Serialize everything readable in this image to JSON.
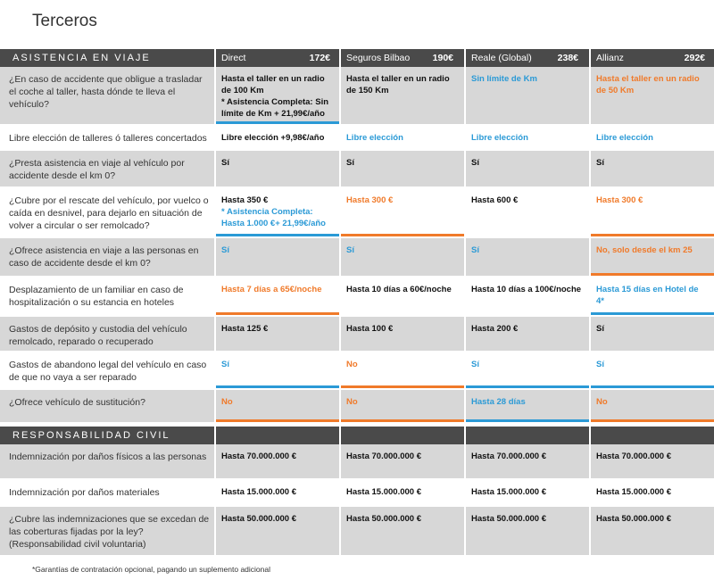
{
  "page": {
    "title": "Terceros"
  },
  "insurers": [
    {
      "name": "Direct",
      "price": "172€"
    },
    {
      "name": "Seguros Bilbao",
      "price": "190€"
    },
    {
      "name": "Reale (Global)",
      "price": "238€"
    },
    {
      "name": "Allianz",
      "price": "292€"
    }
  ],
  "sections": [
    {
      "title": "ASISTENCIA EN VIAJE"
    },
    {
      "title": "RESPONSABILIDAD CIVIL"
    }
  ],
  "rows": [
    {
      "question": "¿En caso de accidente que obligue a trasladar el coche al taller, hasta dónde te lleva el vehículo?",
      "cells": [
        {
          "text": "Hasta el taller en un radio de 100 Km",
          "note": "* Asistencia Completa: Sin límite de Km + 21,99€/año",
          "color": "black",
          "note_color": "black",
          "bar": "blue"
        },
        {
          "text": "Hasta el taller en  un radio de 150 Km",
          "color": "black"
        },
        {
          "text": "Sin límite de Km",
          "color": "blue"
        },
        {
          "text": "Hasta el taller en  un radio de 50 Km",
          "color": "orange"
        }
      ]
    },
    {
      "question": "Libre elección de talleres ó talleres concertados",
      "cells": [
        {
          "text": "Libre elección +9,98€/año",
          "color": "black"
        },
        {
          "text": "Libre elección",
          "color": "blue"
        },
        {
          "text": "Libre elección",
          "color": "blue"
        },
        {
          "text": "Libre elección",
          "color": "blue"
        }
      ]
    },
    {
      "question": "¿Presta asistencia en viaje al vehículo por accidente desde el km 0?",
      "cells": [
        {
          "text": "Sí",
          "color": "black"
        },
        {
          "text": "Sí",
          "color": "black"
        },
        {
          "text": "Sí",
          "color": "black"
        },
        {
          "text": "Sí",
          "color": "black"
        }
      ]
    },
    {
      "question": "¿Cubre por el rescate del vehículo, por vuelco o caída en desnivel, para dejarlo en situación de volver a circular o ser remolcado?",
      "cells": [
        {
          "text": "Hasta 350 €",
          "note": "* Asistencia Completa: Hasta 1.000 €+ 21,99€/año",
          "color": "black",
          "note_color": "blue",
          "bar": "blue"
        },
        {
          "text": "Hasta 300 €",
          "color": "orange",
          "bar": "orange"
        },
        {
          "text": "Hasta 600 €",
          "color": "black"
        },
        {
          "text": "Hasta 300 €",
          "color": "orange",
          "bar": "orange"
        }
      ]
    },
    {
      "question": "¿Ofrece asistencia en viaje a las personas en caso de accidente desde el km 0?",
      "cells": [
        {
          "text": "Sí",
          "color": "blue"
        },
        {
          "text": "Sí",
          "color": "blue"
        },
        {
          "text": "Sí",
          "color": "blue"
        },
        {
          "text": "No, solo desde el km 25",
          "color": "orange",
          "bar": "orange"
        }
      ]
    },
    {
      "question": "Desplazamiento de un familiar en caso de hospitalización o su estancia en hoteles",
      "cells": [
        {
          "text": "Hasta 7 días a 65€/noche",
          "color": "orange",
          "bar": "orange"
        },
        {
          "text": "Hasta 10 días a 60€/noche",
          "color": "black"
        },
        {
          "text": "Hasta 10 días a 100€/noche",
          "color": "black"
        },
        {
          "text": "Hasta 15 días en Hotel de 4*",
          "color": "blue",
          "bar": "blue"
        }
      ]
    },
    {
      "question": "Gastos de depósito y custodia del vehículo remolcado, reparado o recuperado",
      "cells": [
        {
          "text": "Hasta 125 €",
          "color": "black"
        },
        {
          "text": "Hasta 100 €",
          "color": "black"
        },
        {
          "text": "Hasta 200 €",
          "color": "black"
        },
        {
          "text": "Sí",
          "color": "black"
        }
      ]
    },
    {
      "question": "Gastos de abandono legal del vehículo en caso de que no vaya a ser reparado",
      "cells": [
        {
          "text": "Sí",
          "color": "blue",
          "bar": "blue"
        },
        {
          "text": "No",
          "color": "orange",
          "bar": "orange"
        },
        {
          "text": "Sí",
          "color": "blue",
          "bar": "blue"
        },
        {
          "text": "Sí",
          "color": "blue",
          "bar": "blue"
        }
      ]
    },
    {
      "question": "¿Ofrece vehículo de sustitución?",
      "cells": [
        {
          "text": "No",
          "color": "orange",
          "bar": "orange"
        },
        {
          "text": "No",
          "color": "orange",
          "bar": "orange"
        },
        {
          "text": "Hasta 28 días",
          "color": "blue",
          "bar": "blue"
        },
        {
          "text": "No",
          "color": "orange",
          "bar": "orange"
        }
      ]
    },
    {
      "question": "Indemnización por daños físicos a las personas",
      "cells": [
        {
          "text": "Hasta 70.000.000 €",
          "color": "black"
        },
        {
          "text": "Hasta 70.000.000 €",
          "color": "black"
        },
        {
          "text": "Hasta 70.000.000 €",
          "color": "black"
        },
        {
          "text": "Hasta 70.000.000 €",
          "color": "black"
        }
      ]
    },
    {
      "question": "Indemnización por daños materiales",
      "cells": [
        {
          "text": "Hasta 15.000.000 €",
          "color": "black"
        },
        {
          "text": "Hasta 15.000.000 €",
          "color": "black"
        },
        {
          "text": "Hasta 15.000.000 €",
          "color": "black"
        },
        {
          "text": "Hasta 15.000.000 €",
          "color": "black"
        }
      ]
    },
    {
      "question": "¿Cubre las indemnizaciones que se excedan de las coberturas fijadas por la ley? (Responsabilidad civil voluntaria)",
      "cells": [
        {
          "text": "Hasta 50.000.000 €",
          "color": "black"
        },
        {
          "text": "Hasta 50.000.000 €",
          "color": "black"
        },
        {
          "text": "Hasta 50.000.000 €",
          "color": "black"
        },
        {
          "text": "Hasta 50.000.000 €",
          "color": "black"
        }
      ]
    }
  ],
  "footnote": "*Garantías de contratación opcional, pagando un suplemento adicional",
  "colors": {
    "blue": "#2b9ad6",
    "orange": "#f07a2a",
    "band": "#4a4a4a",
    "gray": "#d7d7d7"
  }
}
